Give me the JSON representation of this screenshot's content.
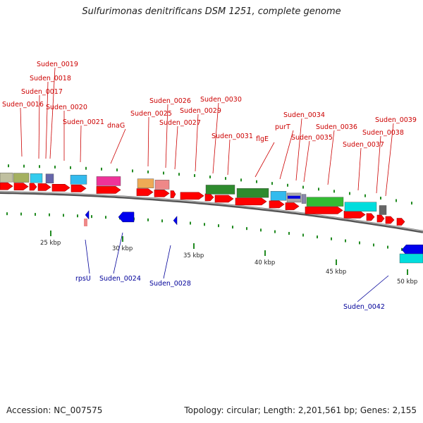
{
  "title": "Sulfurimonas denitrificans DSM 1251, complete genome",
  "accession": "Accession: NC_007575",
  "topology": "Topology: circular; Length: 2,201,561 bp; Genes: 2,155",
  "colors": {
    "forward_cds": "#ff0000",
    "reverse_cds": "#0000ee",
    "forward_label": "#cc0000",
    "reverse_label": "#000099",
    "tick": "#228b22",
    "backbone": "#777777"
  },
  "scale_labels": [
    "25 kbp",
    "30 kbp",
    "35 kbp",
    "40 kbp",
    "45 kbp",
    "50 kbp"
  ],
  "forward_gene_labels": [
    "Suden_0016",
    "Suden_0017",
    "Suden_0018",
    "Suden_0019",
    "Suden_0020",
    "Suden_0021",
    "dnaG",
    "Suden_0025",
    "Suden_0026",
    "Suden_0027",
    "Suden_0029",
    "Suden_0030",
    "Suden_0031",
    "flgE",
    "purT",
    "Suden_0034",
    "Suden_0035",
    "Suden_0036",
    "Suden_0037",
    "Suden_0038",
    "Suden_0039"
  ],
  "reverse_gene_labels": [
    "rpsU",
    "Suden_0024",
    "Suden_0028",
    "Suden_0042"
  ]
}
